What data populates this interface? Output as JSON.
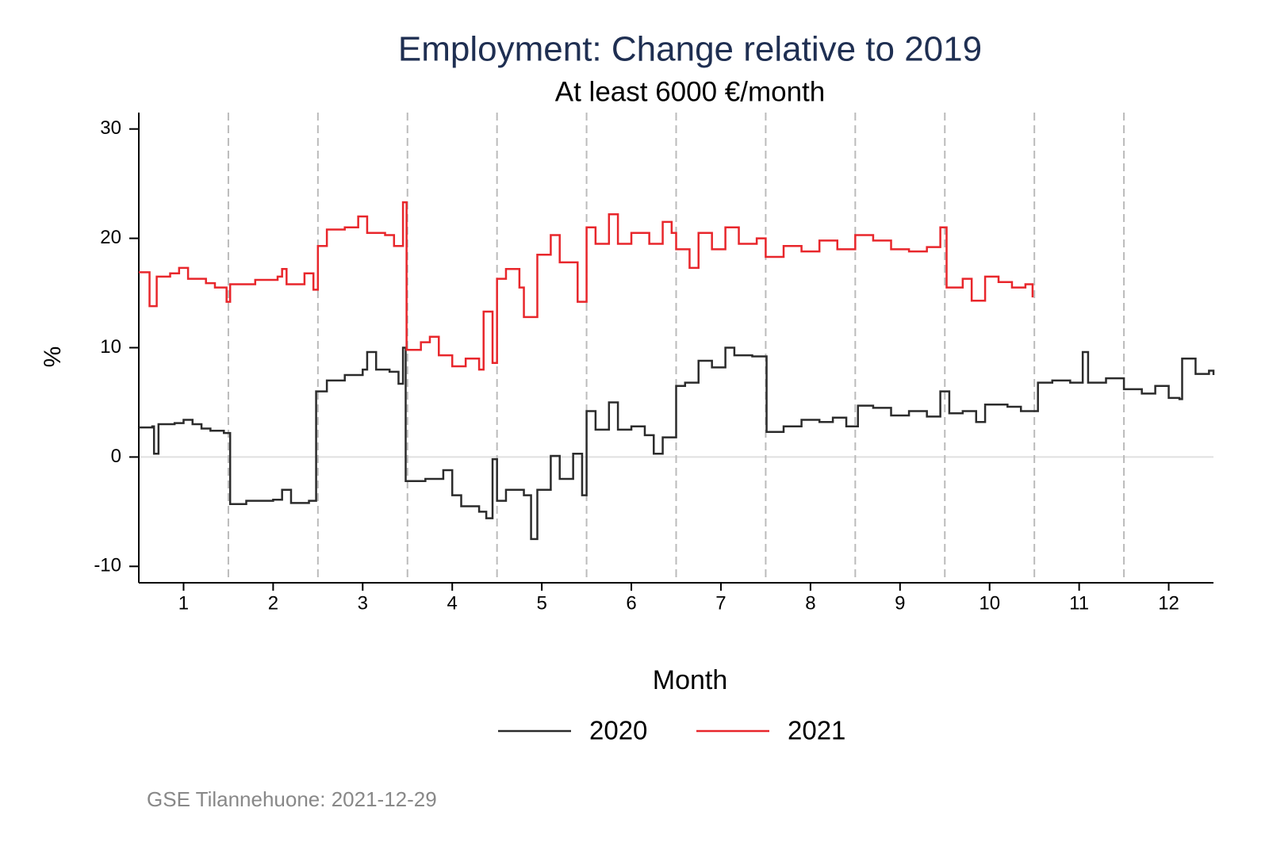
{
  "chart_data": {
    "type": "line",
    "step": true,
    "title": "Employment: Change relative to 2019",
    "subtitle": "At least 6000 €/month",
    "x_label": "Month",
    "y_label": "%",
    "note": "GSE Tilannehuone: 2021-12-29",
    "xlim": [
      0.5,
      12.5
    ],
    "xticks": [
      1,
      2,
      3,
      4,
      5,
      6,
      7,
      8,
      9,
      10,
      11,
      12
    ],
    "ylim": [
      -11.5,
      31.5
    ],
    "yticks": [
      -10,
      0,
      10,
      20,
      30
    ],
    "month_separators": true,
    "zero_line": true,
    "legend": "bottom",
    "series": [
      {
        "name": "2020",
        "color": "#2b2b2b",
        "x": [
          0.5,
          0.65,
          0.67,
          0.72,
          0.9,
          1.0,
          1.1,
          1.2,
          1.3,
          1.45,
          1.52,
          1.7,
          2.0,
          2.1,
          2.2,
          2.4,
          2.48,
          2.6,
          2.8,
          3.0,
          3.05,
          3.15,
          3.3,
          3.4,
          3.45,
          3.48,
          3.7,
          3.9,
          4.0,
          4.1,
          4.3,
          4.38,
          4.45,
          4.5,
          4.6,
          4.8,
          4.88,
          4.95,
          5.1,
          5.2,
          5.35,
          5.45,
          5.5,
          5.6,
          5.75,
          5.85,
          6.0,
          6.15,
          6.25,
          6.35,
          6.5,
          6.6,
          6.75,
          6.9,
          7.05,
          7.15,
          7.35,
          7.51,
          7.7,
          7.9,
          8.1,
          8.25,
          8.4,
          8.53,
          8.7,
          8.9,
          9.1,
          9.3,
          9.45,
          9.55,
          9.7,
          9.85,
          9.95,
          10.2,
          10.35,
          10.54,
          10.7,
          10.9,
          11.04,
          11.1,
          11.3,
          11.5,
          11.7,
          11.85,
          12.0,
          12.12,
          12.15,
          12.3,
          12.45,
          12.5
        ],
        "values": [
          2.7,
          2.8,
          0.3,
          3,
          3.1,
          3.4,
          3,
          2.6,
          2.4,
          2.2,
          -4.3,
          -4,
          -3.9,
          -3,
          -4.2,
          -4,
          6,
          7,
          7.5,
          8,
          9.6,
          8,
          7.8,
          6.7,
          10,
          -2.2,
          -2,
          -1.2,
          -3.5,
          -4.5,
          -5,
          -5.6,
          -0.2,
          -4,
          -3,
          -3.5,
          -7.5,
          -3,
          0.1,
          -2,
          0.3,
          -3.5,
          4.2,
          2.5,
          5,
          2.5,
          2.8,
          2,
          0.3,
          1.8,
          6.5,
          6.8,
          8.8,
          8.2,
          10,
          9.3,
          9.2,
          2.3,
          2.8,
          3.4,
          3.2,
          3.6,
          2.8,
          4.7,
          4.5,
          3.8,
          4.2,
          3.7,
          6,
          4,
          4.2,
          3.2,
          4.8,
          4.6,
          4.2,
          6.8,
          7,
          6.8,
          9.6,
          6.8,
          7.2,
          6.2,
          5.8,
          6.5,
          5.4,
          5.3,
          9,
          7.6,
          7.9,
          7.5
        ]
      },
      {
        "name": "2021",
        "color": "#e8262b",
        "x": [
          0.5,
          0.62,
          0.7,
          0.85,
          0.95,
          1.05,
          1.25,
          1.35,
          1.48,
          1.52,
          1.8,
          2.05,
          2.1,
          2.15,
          2.35,
          2.45,
          2.5,
          2.6,
          2.8,
          2.95,
          3.05,
          3.25,
          3.35,
          3.45,
          3.49,
          3.65,
          3.75,
          3.85,
          4.0,
          4.15,
          4.3,
          4.35,
          4.45,
          4.5,
          4.6,
          4.75,
          4.8,
          4.95,
          5.1,
          5.2,
          5.4,
          5.5,
          5.6,
          5.75,
          5.85,
          6.0,
          6.2,
          6.35,
          6.45,
          6.5,
          6.65,
          6.75,
          6.9,
          7.05,
          7.2,
          7.4,
          7.5,
          7.7,
          7.9,
          8.1,
          8.3,
          8.5,
          8.7,
          8.9,
          9.1,
          9.3,
          9.45,
          9.52,
          9.7,
          9.8,
          9.95,
          10.1,
          10.25,
          10.4,
          10.48
        ],
        "values": [
          16.9,
          13.8,
          16.5,
          16.8,
          17.3,
          16.3,
          15.9,
          15.5,
          14.2,
          15.8,
          16.2,
          16.5,
          17.2,
          15.8,
          16.8,
          15.3,
          19.3,
          20.8,
          21,
          22,
          20.5,
          20.3,
          19.3,
          23.3,
          9.8,
          10.5,
          11,
          9.3,
          8.3,
          9,
          8,
          13.3,
          8.6,
          16.3,
          17.2,
          15.5,
          12.8,
          18.5,
          20.3,
          17.8,
          14.2,
          21,
          19.5,
          22.2,
          19.5,
          20.5,
          19.5,
          21.5,
          20.5,
          19,
          17.3,
          20.5,
          19,
          21,
          19.5,
          20,
          18.3,
          19.3,
          18.8,
          19.8,
          19,
          20.3,
          19.8,
          19,
          18.8,
          19.2,
          21,
          15.5,
          16.3,
          14.3,
          16.5,
          16,
          15.5,
          15.8,
          14.6
        ]
      }
    ]
  }
}
